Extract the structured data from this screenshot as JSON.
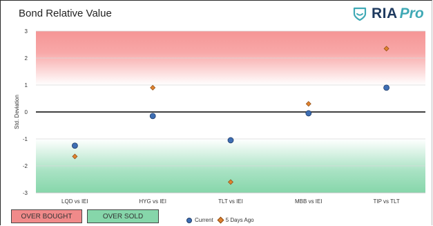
{
  "header": {
    "title": "Bond Relative Value",
    "logo_text": "RIA",
    "logo_suffix": "Pro",
    "logo_icon": "shield-icon"
  },
  "badges": {
    "overbought": "OVER BOUGHT",
    "oversold": "OVER SOLD"
  },
  "colors": {
    "current": "#3e6eb4",
    "five_days_ago": "#e0822f",
    "overbought_zone": "#f59595",
    "oversold_zone": "#86d6aa",
    "brand": "#1e3a5f",
    "accent": "#3fa9b5"
  },
  "chart_data": {
    "type": "scatter",
    "title": "Bond Relative Value",
    "ylabel": "Std. Deviation",
    "xlabel": "",
    "ylim": [
      -3,
      3
    ],
    "yticks": [
      3,
      2,
      1,
      0,
      -1,
      -2,
      -3
    ],
    "categories": [
      "LQD vs IEI",
      "HYG vs IEI",
      "TLT vs IEI",
      "MBB vs IEI",
      "TIP vs TLT"
    ],
    "series": [
      {
        "name": "Current",
        "marker": "circle",
        "values": [
          -1.25,
          -0.15,
          -1.05,
          -0.05,
          0.9
        ]
      },
      {
        "name": "5 Days Ago",
        "marker": "diamond",
        "values": [
          -1.65,
          0.9,
          -2.6,
          0.3,
          2.35
        ]
      }
    ],
    "grid": true,
    "legend_position": "bottom"
  }
}
